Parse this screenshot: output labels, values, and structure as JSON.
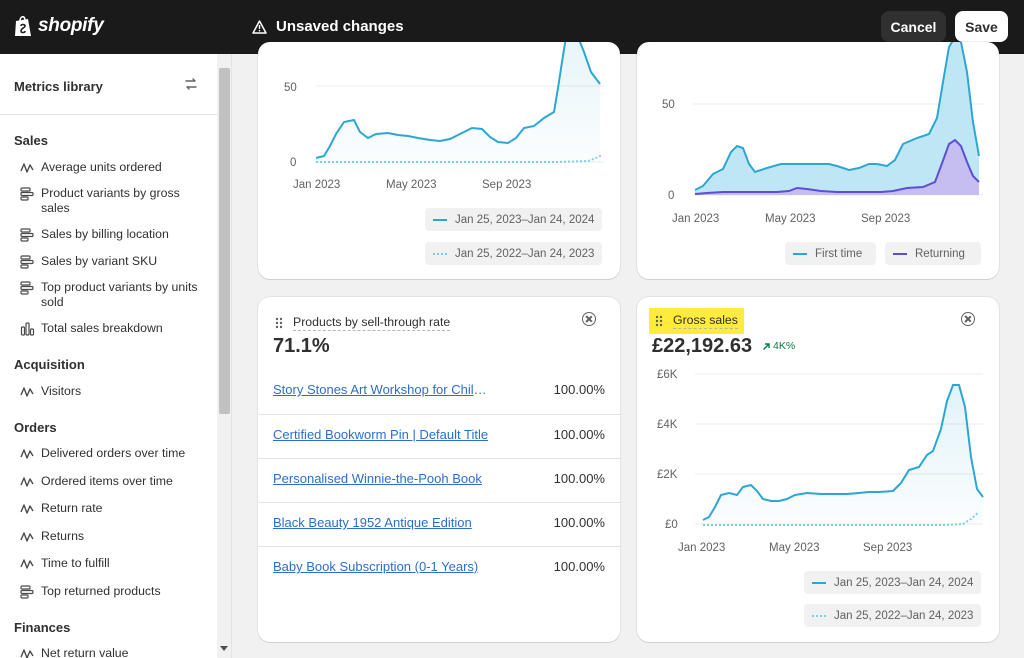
{
  "topbar": {
    "logo_text": "shopify",
    "unsaved_label": "Unsaved changes",
    "cancel_label": "Cancel",
    "save_label": "Save"
  },
  "sidebar": {
    "title": "Metrics library",
    "sections": [
      {
        "title": "Sales",
        "items": [
          {
            "label": "Average units ordered",
            "icon": "line-chart-icon"
          },
          {
            "label": "Product variants by gross sales",
            "icon": "bar-list-icon"
          },
          {
            "label": "Sales by billing location",
            "icon": "bar-list-icon"
          },
          {
            "label": "Sales by variant SKU",
            "icon": "bar-list-icon"
          },
          {
            "label": "Top product variants by units sold",
            "icon": "bar-list-icon"
          },
          {
            "label": "Total sales breakdown",
            "icon": "column-chart-icon"
          }
        ]
      },
      {
        "title": "Acquisition",
        "items": [
          {
            "label": "Visitors",
            "icon": "line-chart-icon"
          }
        ]
      },
      {
        "title": "Orders",
        "items": [
          {
            "label": "Delivered orders over time",
            "icon": "line-chart-icon"
          },
          {
            "label": "Ordered items over time",
            "icon": "line-chart-icon"
          },
          {
            "label": "Return rate",
            "icon": "line-chart-icon"
          },
          {
            "label": "Returns",
            "icon": "line-chart-icon"
          },
          {
            "label": "Time to fulfill",
            "icon": "line-chart-icon"
          },
          {
            "label": "Top returned products",
            "icon": "bar-list-icon"
          }
        ]
      },
      {
        "title": "Finances",
        "items": [
          {
            "label": "Net return value",
            "icon": "line-chart-icon"
          }
        ]
      }
    ]
  },
  "cards": {
    "top_left": {
      "y_ticks": [
        "50",
        "0"
      ],
      "x_ticks": [
        "Jan 2023",
        "May 2023",
        "Sep 2023"
      ],
      "legend": [
        "Jan 25, 2023–Jan 24, 2024",
        "Jan 25, 2022–Jan 24, 2023"
      ]
    },
    "top_right": {
      "y_ticks": [
        "50",
        "0"
      ],
      "x_ticks": [
        "Jan 2023",
        "May 2023",
        "Sep 2023"
      ],
      "legend": [
        "First time",
        "Returning"
      ]
    },
    "products": {
      "title": "Products by sell-through rate",
      "value": "71.1%",
      "rows": [
        {
          "name": "Story Stones Art Workshop for Children",
          "value": "100.00%"
        },
        {
          "name": "Certified Bookworm Pin | Default Title",
          "value": "100.00%"
        },
        {
          "name": "Personalised Winnie-the-Pooh Book",
          "value": "100.00%"
        },
        {
          "name": "Black Beauty 1952 Antique Edition",
          "value": "100.00%"
        },
        {
          "name": "Baby Book Subscription (0-1 Years)",
          "value": "100.00%"
        }
      ]
    },
    "gross_sales": {
      "title": "Gross sales",
      "value": "£22,192.63",
      "change": "4K%",
      "y_ticks": [
        "£6K",
        "£4K",
        "£2K",
        "£0"
      ],
      "x_ticks": [
        "Jan 2023",
        "May 2023",
        "Sep 2023"
      ],
      "legend": [
        "Jan 25, 2023–Jan 24, 2024",
        "Jan 25, 2022–Jan 24, 2023"
      ]
    }
  },
  "colors": {
    "primary_line": "#2ca6d3",
    "compare_line": "#7ccfe8",
    "returning_line": "#5c4fd6",
    "highlight": "#ffeb3b",
    "link": "#2c6ecb",
    "positive": "#0c7a43"
  }
}
